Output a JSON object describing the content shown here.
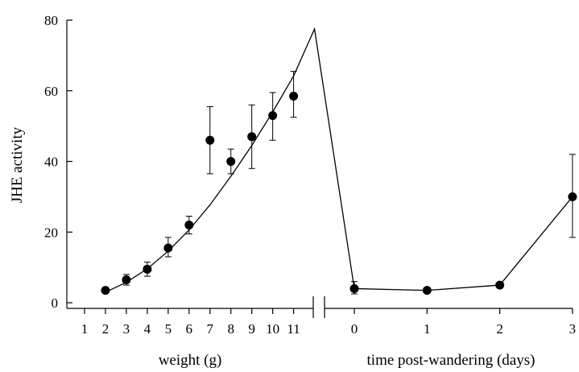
{
  "chart_data": {
    "type": "scatter",
    "ylabel": "JHE activity",
    "ylim": [
      0,
      80
    ],
    "yticks": [
      0,
      20,
      40,
      60,
      80
    ],
    "panels": [
      {
        "xlabel": "weight (g)",
        "xticks": [
          1,
          2,
          3,
          4,
          5,
          6,
          7,
          8,
          9,
          10,
          11
        ],
        "xlim": [
          0.5,
          12
        ],
        "points": [
          {
            "x": 2,
            "y": 3.5,
            "err_low": 3.0,
            "err_high": 4.0
          },
          {
            "x": 3,
            "y": 6.5,
            "err_low": 5.0,
            "err_high": 8.0
          },
          {
            "x": 4,
            "y": 9.5,
            "err_low": 7.5,
            "err_high": 11.5
          },
          {
            "x": 5,
            "y": 15.5,
            "err_low": 13.0,
            "err_high": 18.5
          },
          {
            "x": 6,
            "y": 22.0,
            "err_low": 19.5,
            "err_high": 24.5
          },
          {
            "x": 7,
            "y": 46.0,
            "err_low": 36.5,
            "err_high": 55.5
          },
          {
            "x": 8,
            "y": 40.0,
            "err_low": 36.5,
            "err_high": 43.5
          },
          {
            "x": 9,
            "y": 47.0,
            "err_low": 38.0,
            "err_high": 56.0
          },
          {
            "x": 10,
            "y": 53.0,
            "err_low": 46.0,
            "err_high": 59.5
          },
          {
            "x": 11,
            "y": 58.5,
            "err_low": 52.5,
            "err_high": 65.5
          }
        ],
        "fit_curve": [
          [
            1.9,
            2.7
          ],
          [
            3,
            5.8
          ],
          [
            4,
            9.6
          ],
          [
            5,
            14.6
          ],
          [
            6,
            20.6
          ],
          [
            7,
            27.7
          ],
          [
            8,
            35.8
          ],
          [
            9,
            44.5
          ],
          [
            10,
            54.0
          ],
          [
            11,
            64.2
          ],
          [
            12,
            77.5
          ]
        ]
      },
      {
        "xlabel": "time post-wandering (days)",
        "xticks": [
          0,
          1,
          2,
          3
        ],
        "xlim": [
          -0.12,
          3
        ],
        "points": [
          {
            "x": 0,
            "y": 4.0,
            "err_low": 2.5,
            "err_high": 6.0
          },
          {
            "x": 1,
            "y": 3.5,
            "err_low": 3.0,
            "err_high": 4.0
          },
          {
            "x": 2,
            "y": 5.0,
            "err_low": 4.5,
            "err_high": 5.5
          },
          {
            "x": 3,
            "y": 30.0,
            "err_low": 18.5,
            "err_high": 42.0
          }
        ],
        "line": [
          [
            0,
            4.0
          ],
          [
            1,
            3.5
          ],
          [
            2,
            5.0
          ],
          [
            3,
            30.0
          ]
        ]
      }
    ]
  }
}
